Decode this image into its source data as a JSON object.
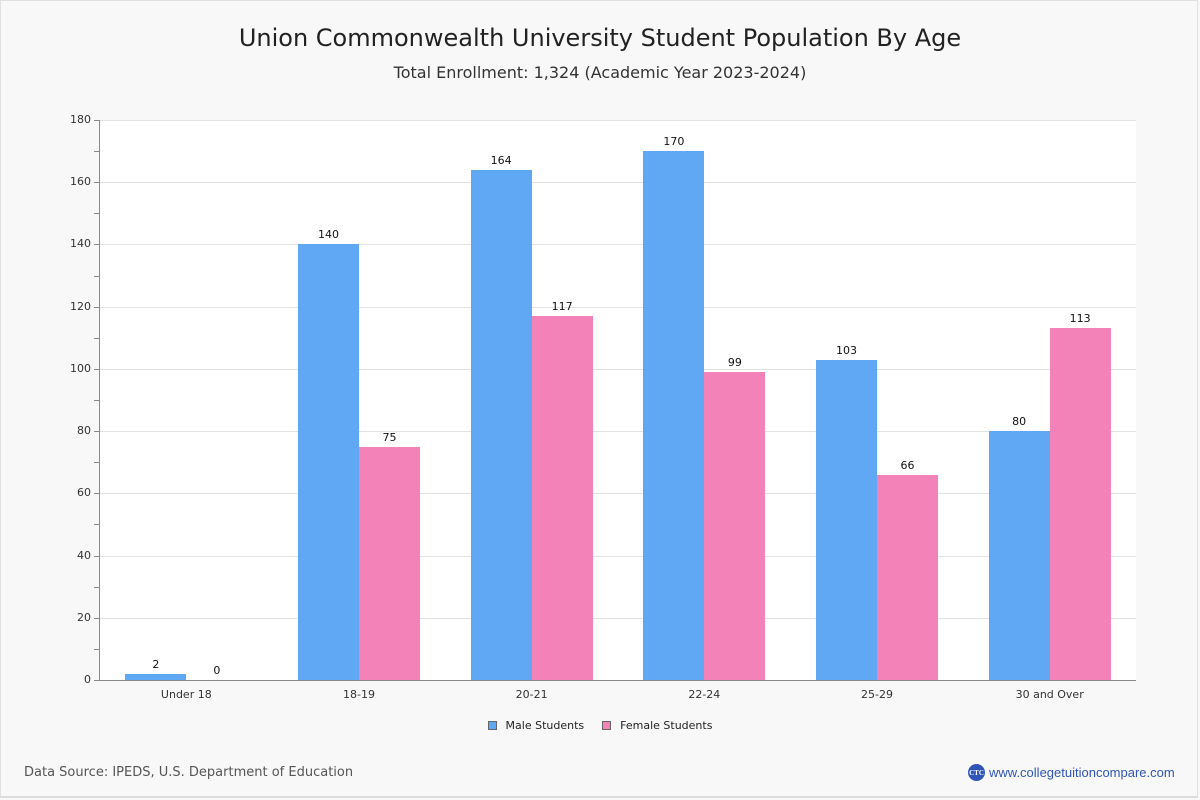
{
  "header": {
    "title": "Union Commonwealth University Student Population By Age",
    "subtitle": "Total Enrollment: 1,324 (Academic Year 2023-2024)"
  },
  "colors": {
    "male": "#60a8f3",
    "female": "#f282b8"
  },
  "chart_data": {
    "type": "bar",
    "title": "Union Commonwealth University Student Population By Age",
    "subtitle": "Total Enrollment: 1,324 (Academic Year 2023-2024)",
    "categories": [
      "Under 18",
      "18-19",
      "20-21",
      "22-24",
      "25-29",
      "30 and Over"
    ],
    "series": [
      {
        "name": "Male Students",
        "color": "#60a8f3",
        "values": [
          2,
          140,
          164,
          170,
          103,
          80
        ]
      },
      {
        "name": "Female Students",
        "color": "#f282b8",
        "values": [
          0,
          75,
          117,
          99,
          66,
          113
        ]
      }
    ],
    "xlabel": "",
    "ylabel": "",
    "ylim": [
      0,
      180
    ],
    "yticks": [
      0,
      20,
      40,
      60,
      80,
      100,
      120,
      140,
      160,
      180
    ],
    "grid": true,
    "legend_position": "bottom",
    "data_labels": true
  },
  "legend": {
    "items": [
      {
        "label": "Male Students"
      },
      {
        "label": "Female Students"
      }
    ]
  },
  "footer": {
    "source": "Data Source: IPEDS, U.S. Department of Education",
    "brand_logo": "CTC",
    "brand_url": "www.collegetuitioncompare.com"
  }
}
